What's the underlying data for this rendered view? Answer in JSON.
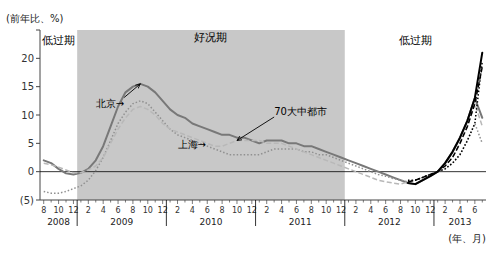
{
  "chart_data": {
    "type": "line",
    "x_label": "(年、月)",
    "y_label": "(前年比、%)",
    "categories": [
      "8",
      null,
      "10",
      null,
      "12",
      null,
      "2",
      null,
      "4",
      null,
      "6",
      null,
      "8",
      null,
      "10",
      null,
      "12",
      null,
      "2",
      null,
      "4",
      null,
      "6",
      null,
      "8",
      null,
      "10",
      null,
      "12",
      null,
      "2",
      null,
      "4",
      null,
      "6",
      null,
      "8",
      null,
      "10",
      null,
      "12",
      null,
      "2",
      null,
      "4",
      null,
      "6",
      null,
      "8",
      null,
      "10",
      null,
      "12",
      null,
      "2",
      null,
      "4",
      null,
      "6",
      null
    ],
    "year_groups": [
      {
        "label": "2008",
        "start": 0,
        "end": 4
      },
      {
        "label": "2009",
        "start": 5,
        "end": 16
      },
      {
        "label": "2010",
        "start": 17,
        "end": 28
      },
      {
        "label": "2011",
        "start": 29,
        "end": 40
      },
      {
        "label": "2012",
        "start": 41,
        "end": 52
      },
      {
        "label": "2013",
        "start": 53,
        "end": 59
      }
    ],
    "periods": [
      {
        "label": "低过期",
        "start": 0,
        "end": 4
      },
      {
        "label": "好况期",
        "start": 5,
        "end": 40,
        "color": "#c8c8c8"
      },
      {
        "label": "低过期",
        "start": 41,
        "end": 59
      }
    ],
    "ylim": [
      -5,
      25
    ],
    "yticks": [
      {
        "value": -5,
        "label": "(5)"
      },
      0,
      5,
      10,
      15,
      20,
      {
        "value": 25,
        "label": null
      }
    ],
    "grid": false,
    "series": [
      {
        "color": "#787878",
        "line_style": "solid",
        "values": [
          2.0,
          1.5,
          0.5,
          -0.3,
          -0.5,
          -0.2,
          0.5,
          2.0,
          4.5,
          8.0,
          11.5,
          14.0,
          15.0,
          15.5,
          15.0,
          14.0,
          12.5,
          11.0,
          10.0,
          9.5,
          8.5,
          8.0,
          7.5,
          7.0,
          6.5,
          6.5,
          6.0,
          6.0,
          5.5,
          5.0,
          5.5,
          5.5,
          5.5,
          5.0,
          5.0,
          4.5,
          4.5,
          4.0,
          3.5,
          3.0,
          2.5,
          2.0,
          1.5,
          1.0,
          0.5,
          0.0,
          -0.5,
          -1.0,
          -1.5,
          -2.0,
          -2.2,
          -1.5,
          -0.8,
          0.0,
          1.5,
          3.5,
          6.0,
          9.0,
          13.0,
          9.5
        ]
      },
      {
        "color": "#909090",
        "line_style": "dotted",
        "values": [
          -3.5,
          -3.8,
          -3.8,
          -3.5,
          -3.0,
          -2.5,
          -1.5,
          0.2,
          2.5,
          5.5,
          8.5,
          10.5,
          12.0,
          12.5,
          12.0,
          10.5,
          9.0,
          7.5,
          6.5,
          6.0,
          5.5,
          5.0,
          4.5,
          4.0,
          3.5,
          3.0,
          3.0,
          3.0,
          3.0,
          3.0,
          3.5,
          4.0,
          4.0,
          4.0,
          4.0,
          3.5,
          3.5,
          3.0,
          3.0,
          2.5,
          2.0,
          1.5,
          1.0,
          0.5,
          0.0,
          -0.5,
          -0.8,
          -1.2,
          -1.5,
          -1.8,
          -1.5,
          -1.0,
          -0.5,
          0.0,
          0.5,
          1.5,
          3.0,
          5.5,
          8.5,
          5.0
        ]
      },
      {
        "color": "#b8b8b8",
        "line_style": "dashed",
        "values": [
          1.5,
          1.2,
          0.8,
          0.3,
          -0.2,
          -0.2,
          0.3,
          1.0,
          2.5,
          5.0,
          7.5,
          9.5,
          11.0,
          11.5,
          11.0,
          10.0,
          8.5,
          7.5,
          7.0,
          6.5,
          6.0,
          5.5,
          5.0,
          4.5,
          4.5,
          5.0,
          5.5,
          5.5,
          5.5,
          5.5,
          5.0,
          5.0,
          5.0,
          4.5,
          4.0,
          3.5,
          3.0,
          2.5,
          2.0,
          1.5,
          1.0,
          0.5,
          0.0,
          -0.5,
          -1.0,
          -1.5,
          -1.8,
          -2.0,
          -2.2,
          -1.8,
          -1.5,
          -1.0,
          -0.5,
          0.0,
          1.0,
          2.5,
          5.0,
          8.0,
          12.0,
          8.0
        ]
      },
      {
        "color": "#000000",
        "line_style": "solid",
        "values": [
          null,
          null,
          null,
          null,
          null,
          null,
          null,
          null,
          null,
          null,
          null,
          null,
          null,
          null,
          null,
          null,
          null,
          null,
          null,
          null,
          null,
          null,
          null,
          null,
          null,
          null,
          null,
          null,
          null,
          null,
          null,
          null,
          null,
          null,
          null,
          null,
          null,
          null,
          null,
          null,
          null,
          null,
          null,
          null,
          null,
          null,
          null,
          null,
          null,
          -2.0,
          -2.2,
          -1.5,
          -0.8,
          0.0,
          1.5,
          3.5,
          6.0,
          9.0,
          13.0,
          21.0
        ]
      },
      {
        "color": "#000000",
        "line_style": "dotted",
        "values": [
          null,
          null,
          null,
          null,
          null,
          null,
          null,
          null,
          null,
          null,
          null,
          null,
          null,
          null,
          null,
          null,
          null,
          null,
          null,
          null,
          null,
          null,
          null,
          null,
          null,
          null,
          null,
          null,
          null,
          null,
          null,
          null,
          null,
          null,
          null,
          null,
          null,
          null,
          null,
          null,
          null,
          null,
          null,
          null,
          null,
          null,
          null,
          null,
          null,
          -1.5,
          -1.5,
          -1.0,
          -0.5,
          0.0,
          0.5,
          1.5,
          3.0,
          5.5,
          8.5,
          19.5
        ]
      },
      {
        "color": "#000000",
        "line_style": "dashed",
        "values": [
          null,
          null,
          null,
          null,
          null,
          null,
          null,
          null,
          null,
          null,
          null,
          null,
          null,
          null,
          null,
          null,
          null,
          null,
          null,
          null,
          null,
          null,
          null,
          null,
          null,
          null,
          null,
          null,
          null,
          null,
          null,
          null,
          null,
          null,
          null,
          null,
          null,
          null,
          null,
          null,
          null,
          null,
          null,
          null,
          null,
          null,
          null,
          null,
          null,
          -1.8,
          -1.5,
          -1.0,
          -0.5,
          0.0,
          1.0,
          2.5,
          5.0,
          8.0,
          12.0,
          18.5
        ]
      }
    ],
    "annotations": [
      {
        "text": "北京→",
        "x": 7,
        "y": 11.5,
        "arrow": [
          13,
          15.5
        ]
      },
      {
        "text": "上海→",
        "x": 18,
        "y": 4.2
      },
      {
        "text": "70大中都市",
        "x": 31,
        "y": 10,
        "arrow": [
          26,
          5.5
        ]
      }
    ]
  }
}
